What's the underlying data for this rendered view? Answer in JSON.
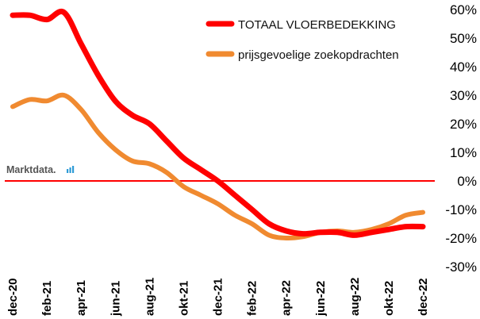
{
  "brand": {
    "text": "Marktdata.",
    "icon": "bar-chart-icon",
    "icon_color": "#2e9bd6"
  },
  "chart_data": {
    "type": "line",
    "title": "",
    "xlabel": "",
    "ylabel": "",
    "x": [
      "dec-20",
      "jan-21",
      "feb-21",
      "mrt-21",
      "apr-21",
      "mei-21",
      "jun-21",
      "jul-21",
      "aug-21",
      "sep-21",
      "okt-21",
      "nov-21",
      "dec-21",
      "jan-22",
      "feb-22",
      "mrt-22",
      "apr-22",
      "mei-22",
      "jun-22",
      "jul-22",
      "aug-22",
      "sep-22",
      "okt-22",
      "nov-22",
      "dec-22"
    ],
    "x_tick_labels": [
      "dec-20",
      "feb-21",
      "apr-21",
      "jun-21",
      "aug-21",
      "okt-21",
      "dec-21",
      "feb-22",
      "apr-22",
      "jun-22",
      "aug-22",
      "okt-22",
      "dec-22"
    ],
    "ylim": [
      -30,
      60
    ],
    "y_ticks": [
      "60%",
      "50%",
      "40%",
      "30%",
      "20%",
      "10%",
      "0%",
      "-10%",
      "-20%",
      "-30%"
    ],
    "y_tick_values": [
      60,
      50,
      40,
      30,
      20,
      10,
      0,
      -10,
      -20,
      -30
    ],
    "zero_line_color": "#ff0000",
    "grid": false,
    "legend_position": "top-right",
    "series": [
      {
        "name": "TOTAAL VLOERBEDEKKING",
        "color": "#ff0000",
        "values": [
          58,
          58,
          56.5,
          59,
          48,
          37,
          28,
          23,
          20,
          14,
          8,
          4,
          0,
          -5,
          -10,
          -15,
          -17.5,
          -18.5,
          -18,
          -18,
          -19,
          -18,
          -17,
          -16,
          -16
        ]
      },
      {
        "name": "prijsgevoelige zoekopdrachten",
        "color": "#f08a30",
        "values": [
          26,
          28.5,
          28,
          30,
          25,
          17,
          11,
          7,
          6,
          3,
          -2,
          -5,
          -8,
          -12,
          -15,
          -19,
          -20,
          -19.5,
          -18,
          -17.5,
          -18,
          -17,
          -15,
          -12,
          -11
        ]
      }
    ]
  }
}
